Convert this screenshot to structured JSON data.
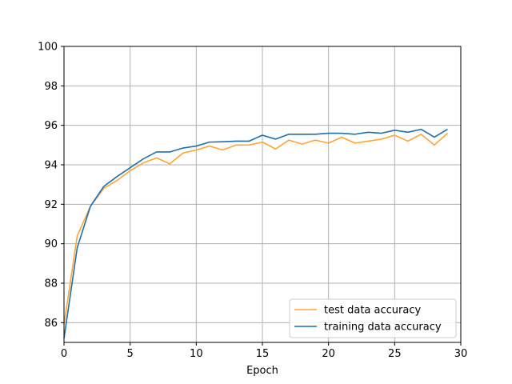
{
  "chart_data": {
    "type": "line",
    "title": "",
    "xlabel": "Epoch",
    "ylabel": "",
    "xlim": [
      0,
      30
    ],
    "ylim": [
      85,
      100
    ],
    "xticks": [
      0,
      5,
      10,
      15,
      20,
      25,
      30
    ],
    "yticks": [
      86,
      88,
      90,
      92,
      94,
      96,
      98,
      100
    ],
    "grid": true,
    "legend_position": "lower-right",
    "x": [
      0,
      1,
      2,
      3,
      4,
      5,
      6,
      7,
      8,
      9,
      10,
      11,
      12,
      13,
      14,
      15,
      16,
      17,
      18,
      19,
      20,
      21,
      22,
      23,
      24,
      25,
      26,
      27,
      28,
      29
    ],
    "series": [
      {
        "name": "test data accuracy",
        "color": "#ffa534",
        "values": [
          85.9,
          90.4,
          91.9,
          92.8,
          93.2,
          93.7,
          94.1,
          94.35,
          94.05,
          94.6,
          94.75,
          94.95,
          94.75,
          95.0,
          95.0,
          95.15,
          94.8,
          95.25,
          95.05,
          95.25,
          95.1,
          95.4,
          95.1,
          95.2,
          95.3,
          95.5,
          95.2,
          95.55,
          95.0,
          95.6
        ]
      },
      {
        "name": "training data accuracy",
        "color": "#1f6fb0",
        "values": [
          85.2,
          89.8,
          91.9,
          92.9,
          93.4,
          93.85,
          94.3,
          94.65,
          94.65,
          94.85,
          94.95,
          95.15,
          95.17,
          95.2,
          95.2,
          95.5,
          95.3,
          95.55,
          95.55,
          95.55,
          95.6,
          95.6,
          95.55,
          95.65,
          95.6,
          95.75,
          95.65,
          95.8,
          95.4,
          95.8
        ]
      }
    ]
  }
}
